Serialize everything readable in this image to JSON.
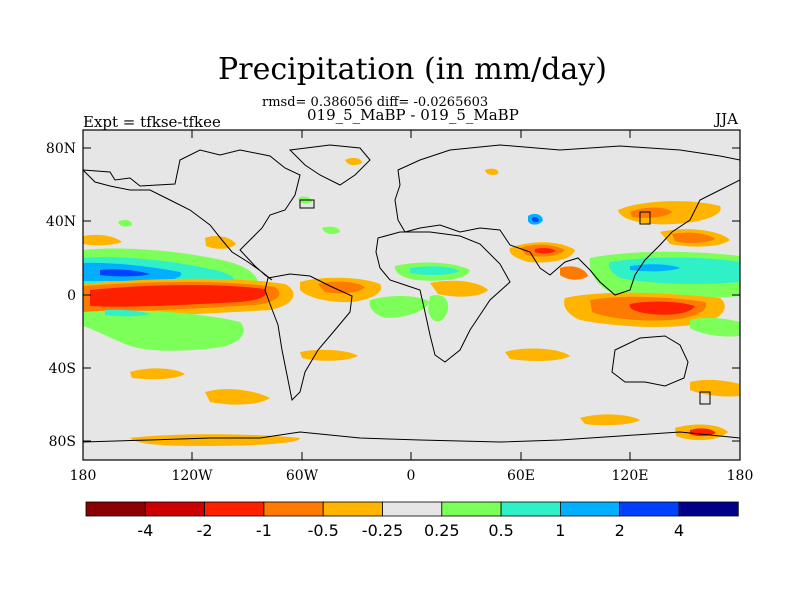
{
  "map": {
    "title": "Precipitation (in mm/day)",
    "stats_line": "rmsd= 0.386056 diff= -0.0265603",
    "case_line": "019_5_MaBP - 019_5_MaBP",
    "left_label": "Expt = tfkse-tfkee",
    "season_label": "JJA",
    "lat_ticks": [
      "80N",
      "40N",
      "0",
      "40S",
      "80S"
    ],
    "lon_ticks": [
      "180",
      "120W",
      "60W",
      "0",
      "60E",
      "120E",
      "180"
    ]
  },
  "colorbar": {
    "labels": [
      "-4",
      "-2",
      "-1",
      "-0.5",
      "-0.25",
      "0.25",
      "0.5",
      "1",
      "2",
      "4"
    ],
    "colors": [
      "#8b0000",
      "#cc0000",
      "#ff2000",
      "#ff7a00",
      "#ffb400",
      "#e6e6e6",
      "#7dff5a",
      "#30f0c8",
      "#00b0ff",
      "#0040ff",
      "#00008b"
    ]
  },
  "style": {
    "ocean_background": "#e6e6e6",
    "coastline": "#000000"
  }
}
